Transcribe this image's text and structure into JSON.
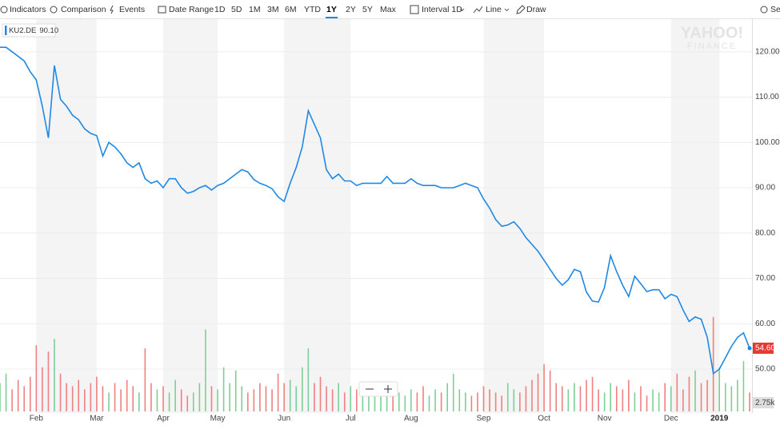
{
  "toolbar": {
    "items": [
      "Indicators",
      "Comparison",
      "Events",
      "Date Range",
      "1D",
      "5D",
      "1M",
      "3M",
      "6M",
      "YTD",
      "1Y",
      "2Y",
      "5Y",
      "Max",
      "Interval 1D",
      "Line",
      "Draw",
      "Se"
    ],
    "active": 10
  },
  "chart_data": {
    "type": "line",
    "watermark": [
      "YAHOO!",
      "FINANCE"
    ],
    "categories": [
      null,
      null,
      null,
      null,
      null,
      null,
      "Feb",
      null,
      null,
      null,
      null,
      null,
      null,
      null,
      null,
      null,
      "Mar",
      null,
      null,
      null,
      null,
      null,
      null,
      null,
      null,
      null,
      null,
      "Apr",
      null,
      null,
      null,
      null,
      null,
      null,
      null,
      null,
      "May",
      null,
      null,
      null,
      null,
      null,
      null,
      null,
      null,
      null,
      null,
      "Jun",
      null,
      null,
      null,
      null,
      null,
      null,
      null,
      null,
      null,
      null,
      "Jul",
      null,
      null,
      null,
      null,
      null,
      null,
      null,
      null,
      null,
      "Aug",
      null,
      null,
      null,
      null,
      null,
      null,
      null,
      null,
      null,
      null,
      null,
      "Sep",
      null,
      null,
      null,
      null,
      null,
      null,
      null,
      null,
      null,
      "Oct",
      null,
      null,
      null,
      null,
      null,
      null,
      null,
      null,
      null,
      "Nov",
      null,
      null,
      null,
      null,
      null,
      null,
      null,
      null,
      null,
      null,
      "Dec",
      null,
      null,
      null,
      null,
      null,
      null,
      null,
      "2019",
      null,
      null,
      null,
      null,
      null
    ],
    "series": [
      {
        "name": "KU2.DE",
        "color": "#1e88e5",
        "legend_value": "90.10",
        "last_label": "54.60",
        "values": [
          121,
          121,
          120,
          119,
          118,
          115.6,
          113.8,
          108,
          101,
          117,
          109.5,
          108,
          106,
          105,
          103,
          102,
          101.5,
          97,
          100,
          99,
          97.5,
          95.5,
          94.5,
          95.5,
          92,
          91,
          91.5,
          90,
          92,
          92,
          90,
          88.8,
          89.2,
          90,
          90.5,
          89.5,
          90.5,
          91,
          92,
          93,
          94,
          93.5,
          91.8,
          91,
          90.5,
          89.8,
          88,
          87,
          91,
          94.5,
          99,
          107,
          104,
          101,
          94,
          92,
          93,
          91.5,
          91.5,
          90.5,
          91,
          91,
          91,
          91,
          92.5,
          91,
          91,
          91,
          92,
          91,
          90.5,
          90.5,
          90.5,
          90,
          90,
          90,
          90.5,
          91,
          90.5,
          90,
          87.5,
          85.5,
          83,
          81.5,
          81.8,
          82.5,
          81,
          79,
          77.5,
          76,
          74,
          72,
          70,
          68.5,
          69.7,
          72,
          71.5,
          67,
          65,
          64.8,
          68,
          75,
          71.5,
          68.5,
          66,
          70.5,
          68.8,
          67.1,
          67.5,
          67.5,
          65.5,
          66.5,
          66,
          63,
          60.5,
          61.5,
          61,
          57,
          49,
          50,
          52.5,
          55,
          57,
          58,
          54.6
        ]
      }
    ],
    "volume": {
      "axis": "y2",
      "up_color": "#7ccf97",
      "down_color": "#f08080",
      "values": [
        9000,
        12000,
        7000,
        10000,
        8000,
        11000,
        21000,
        14000,
        19000,
        23000,
        12000,
        9000,
        8000,
        10000,
        7000,
        9000,
        11000,
        8000,
        6000,
        9000,
        7000,
        10000,
        8000,
        6000,
        20000,
        9000,
        7000,
        8000,
        6000,
        10000,
        7000,
        5000,
        6000,
        9000,
        26000,
        8000,
        7000,
        14000,
        9000,
        13000,
        8000,
        6000,
        7000,
        9000,
        8000,
        7000,
        12000,
        9000,
        10000,
        8000,
        14000,
        20000,
        9000,
        11000,
        8000,
        7000,
        9000,
        6000,
        8000,
        7000,
        6000,
        7000,
        5000,
        6000,
        8000,
        7000,
        6000,
        5000,
        7000,
        6000,
        8000,
        5000,
        7000,
        6000,
        9000,
        12000,
        7000,
        6000,
        5000,
        6000,
        8000,
        7000,
        6000,
        5000,
        9000,
        7000,
        6000,
        8000,
        10000,
        12000,
        15000,
        13000,
        9000,
        8000,
        7000,
        9000,
        8000,
        10000,
        11000,
        7000,
        6000,
        9000,
        8000,
        7000,
        10000,
        6000,
        8000,
        5000,
        7000,
        6000,
        9000,
        8000,
        12000,
        7000,
        11000,
        13000,
        9000,
        10000,
        30000,
        14000,
        9000,
        8000,
        10000,
        16000,
        6000
      ]
    },
    "ylim": [
      40.3,
      127.2
    ],
    "yticks": [
      {
        "value": 50,
        "label": "50.00"
      },
      {
        "value": 60,
        "label": "60.00"
      },
      {
        "value": 70,
        "label": "70.00"
      },
      {
        "value": 80,
        "label": "80.00"
      },
      {
        "value": 90,
        "label": "90.00"
      },
      {
        "value": 100,
        "label": "100.00"
      },
      {
        "value": 110,
        "label": "110.00"
      },
      {
        "value": 120,
        "label": "120.00"
      }
    ],
    "y2lim": [
      0,
      125000
    ],
    "y2ticks": [
      {
        "value": 2750,
        "label": "2.75k"
      }
    ],
    "grid": true
  }
}
